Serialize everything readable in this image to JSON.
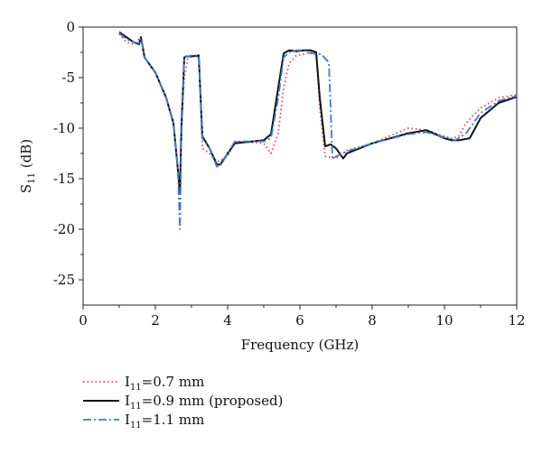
{
  "chart_data": {
    "type": "line",
    "xlabel": "Frequency (GHz)",
    "ylabel_main": "S",
    "ylabel_sub": "11",
    "ylabel_unit": " (dB)",
    "xlim": [
      0,
      12
    ],
    "ylim": [
      -27.5,
      0
    ],
    "xticks": [
      "0",
      "2",
      "4",
      "6",
      "8",
      "10",
      "12"
    ],
    "yticks": [
      "0",
      "-5",
      "-10",
      "-15",
      "-20",
      "-25"
    ],
    "grid": false,
    "legend_position": "bottom-left",
    "series": [
      {
        "legend_main": "I",
        "legend_sub": "11",
        "legend_rest": "=0.7 mm",
        "color": "#e8413a",
        "style": "dotted",
        "x": [
          1.0,
          1.2,
          1.4,
          1.55,
          1.6,
          1.7,
          2.0,
          2.3,
          2.5,
          2.62,
          2.68,
          2.72,
          2.8,
          2.9,
          3.0,
          3.2,
          3.3,
          3.5,
          3.7,
          3.8,
          4.0,
          4.2,
          5.0,
          5.2,
          5.4,
          5.55,
          5.7,
          5.9,
          6.1,
          6.3,
          6.45,
          6.55,
          6.7,
          7.0,
          7.3,
          8.0,
          9.0,
          9.5,
          10.0,
          10.2,
          10.4,
          10.6,
          11.0,
          11.5,
          12.0
        ],
        "y": [
          -0.7,
          -1.5,
          -1.7,
          -1.2,
          -1.0,
          -3.0,
          -4.5,
          -7.0,
          -9.5,
          -14.0,
          -16.0,
          -10.0,
          -5.0,
          -3.0,
          -2.8,
          -3.0,
          -12.0,
          -12.5,
          -13.3,
          -13.2,
          -12.8,
          -11.3,
          -11.5,
          -12.5,
          -10.5,
          -6.0,
          -3.6,
          -2.8,
          -2.7,
          -2.5,
          -2.5,
          -8.0,
          -12.8,
          -13.0,
          -12.2,
          -11.5,
          -10.0,
          -10.2,
          -10.8,
          -11.0,
          -10.8,
          -9.5,
          -8.0,
          -7.0,
          -6.7
        ]
      },
      {
        "legend_main": "I",
        "legend_sub": "11",
        "legend_rest": "=0.9 mm (proposed)",
        "color": "#111111",
        "style": "solid",
        "x": [
          1.0,
          1.2,
          1.4,
          1.55,
          1.6,
          1.7,
          2.0,
          2.3,
          2.5,
          2.62,
          2.68,
          2.72,
          2.8,
          2.85,
          3.0,
          3.2,
          3.3,
          3.5,
          3.7,
          3.8,
          4.0,
          4.2,
          5.0,
          5.2,
          5.4,
          5.55,
          5.7,
          5.9,
          6.1,
          6.3,
          6.45,
          6.55,
          6.7,
          6.85,
          7.0,
          7.2,
          7.3,
          8.0,
          9.0,
          9.5,
          10.0,
          10.2,
          10.4,
          10.7,
          11.0,
          11.5,
          12.0
        ],
        "y": [
          -0.5,
          -1.0,
          -1.5,
          -1.7,
          -1.0,
          -3.0,
          -4.5,
          -7.0,
          -9.5,
          -14.0,
          -16.5,
          -10.0,
          -3.0,
          -2.9,
          -2.9,
          -2.8,
          -10.8,
          -12.0,
          -13.6,
          -13.6,
          -12.5,
          -11.5,
          -11.2,
          -10.6,
          -6.0,
          -2.6,
          -2.3,
          -2.4,
          -2.3,
          -2.3,
          -2.5,
          -7.0,
          -11.8,
          -11.6,
          -12.0,
          -13.0,
          -12.5,
          -11.5,
          -10.5,
          -10.2,
          -11.0,
          -11.2,
          -11.2,
          -11.0,
          -9.0,
          -7.5,
          -6.9
        ]
      },
      {
        "legend_main": "I",
        "legend_sub": "11",
        "legend_rest": "=1.1 mm",
        "color": "#3a7bd5",
        "style": "dashdot",
        "x": [
          1.0,
          1.2,
          1.4,
          1.55,
          1.6,
          1.7,
          2.0,
          2.3,
          2.5,
          2.62,
          2.68,
          2.72,
          2.8,
          2.9,
          3.0,
          3.2,
          3.3,
          3.5,
          3.7,
          3.8,
          4.0,
          4.2,
          5.0,
          5.2,
          5.4,
          5.55,
          5.7,
          5.9,
          6.1,
          6.3,
          6.6,
          6.8,
          6.85,
          6.9,
          7.0,
          7.3,
          8.0,
          9.0,
          9.5,
          10.0,
          10.3,
          10.6,
          11.0,
          11.5,
          12.0
        ],
        "y": [
          -0.6,
          -1.2,
          -1.5,
          -1.6,
          -1.1,
          -3.0,
          -4.5,
          -7.0,
          -9.5,
          -14.0,
          -20.0,
          -11.0,
          -3.0,
          -2.9,
          -2.8,
          -2.8,
          -11.0,
          -12.0,
          -13.8,
          -13.7,
          -12.5,
          -11.3,
          -11.3,
          -11.0,
          -7.0,
          -3.0,
          -2.5,
          -2.3,
          -2.3,
          -2.6,
          -2.7,
          -3.5,
          -8.0,
          -13.0,
          -12.8,
          -12.3,
          -11.5,
          -10.6,
          -10.4,
          -10.9,
          -11.2,
          -10.5,
          -8.5,
          -7.3,
          -6.8
        ]
      }
    ]
  }
}
